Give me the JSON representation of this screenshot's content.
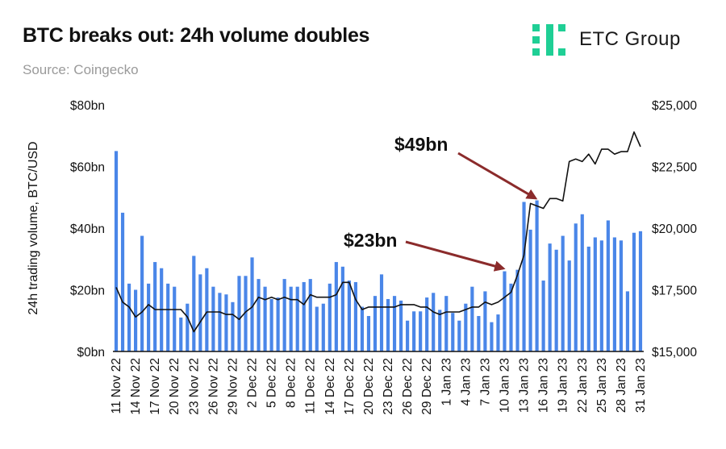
{
  "header": {
    "title": "BTC breaks out: 24h volume doubles",
    "source": "Source: Coingecko",
    "logo_text": "ETC Group",
    "logo_color": "#1fcf95"
  },
  "chart_data": {
    "type": "bar",
    "title": "BTC breaks out: 24h volume doubles",
    "ylabel": "24h trading volume, BTC/USD",
    "ylim": [
      0,
      80
    ],
    "y2lim": [
      15000,
      25000
    ],
    "y_ticks": [
      "$0bn",
      "$20bn",
      "$40bn",
      "$60bn",
      "$80bn"
    ],
    "y2_ticks": [
      "$15,000",
      "$17,500",
      "$20,000",
      "$22,500",
      "$25,000"
    ],
    "x_tick_labels": [
      "11 Nov 22",
      "14 Nov 22",
      "17 Nov 22",
      "20 Nov 22",
      "23 Nov 22",
      "26 Nov 22",
      "29 Nov 22",
      "2 Dec 22",
      "5 Dec 22",
      "8 Dec 22",
      "11 Dec 22",
      "14 Dec 22",
      "17 Dec 22",
      "20 Dec 22",
      "23 Dec 22",
      "26 Dec 22",
      "29 Dec 22",
      "1 Jan 23",
      "4 Jan 23",
      "7 Jan 23",
      "10 Jan 23",
      "13 Jan 23",
      "16 Jan 23",
      "19 Jan 23",
      "22 Jan 23",
      "25 Jan 23",
      "28 Jan 23",
      "31 Jan 23"
    ],
    "bar_color": "#4a86e8",
    "line_color": "#111111",
    "series": [
      {
        "type": "bar",
        "axis": "left",
        "values": [
          65,
          45,
          22,
          20,
          37.5,
          22,
          29,
          27,
          22,
          21,
          11,
          15.5,
          31,
          25,
          27,
          21,
          19,
          18.5,
          16,
          24.5,
          24.5,
          30.5,
          23.5,
          21,
          17,
          17.5,
          23.5,
          21,
          21,
          22.5,
          23.5,
          14.5,
          15.5,
          22,
          29,
          27.5,
          23,
          22.5,
          14.5,
          11.5,
          18,
          25,
          17,
          18,
          16.5,
          10,
          13,
          13,
          17.5,
          19,
          13.5,
          18,
          12.5,
          10,
          15.5,
          21,
          11.5,
          19.5,
          9.5,
          12,
          26,
          22,
          26.5,
          48.5,
          39.5,
          49,
          23,
          35,
          33,
          37.5,
          29.5,
          41.5,
          44.5,
          34,
          37,
          36,
          42.5,
          37,
          36,
          19.5,
          38.5,
          39
        ]
      },
      {
        "type": "line",
        "axis": "right",
        "values": [
          17600,
          17000,
          16800,
          16400,
          16600,
          16900,
          16700,
          16700,
          16700,
          16700,
          16700,
          16400,
          15800,
          16200,
          16600,
          16600,
          16600,
          16500,
          16500,
          16300,
          16600,
          16800,
          17200,
          17100,
          17200,
          17100,
          17200,
          17100,
          17100,
          16900,
          17300,
          17200,
          17200,
          17200,
          17300,
          17800,
          17800,
          17100,
          16700,
          16800,
          16800,
          16800,
          16800,
          16800,
          16900,
          16900,
          16900,
          16800,
          16800,
          16600,
          16500,
          16600,
          16600,
          16600,
          16700,
          16800,
          16800,
          17000,
          16900,
          17000,
          17200,
          17400,
          18100,
          18900,
          21000,
          20900,
          20800,
          21200,
          21200,
          21100,
          22700,
          22800,
          22700,
          23000,
          22600,
          23200,
          23200,
          23000,
          23100,
          23100,
          23900,
          23300
        ]
      }
    ],
    "annotations": [
      {
        "text": "$49bn"
      },
      {
        "text": "$23bn"
      }
    ],
    "annotation_color": "#8b2b2b"
  }
}
